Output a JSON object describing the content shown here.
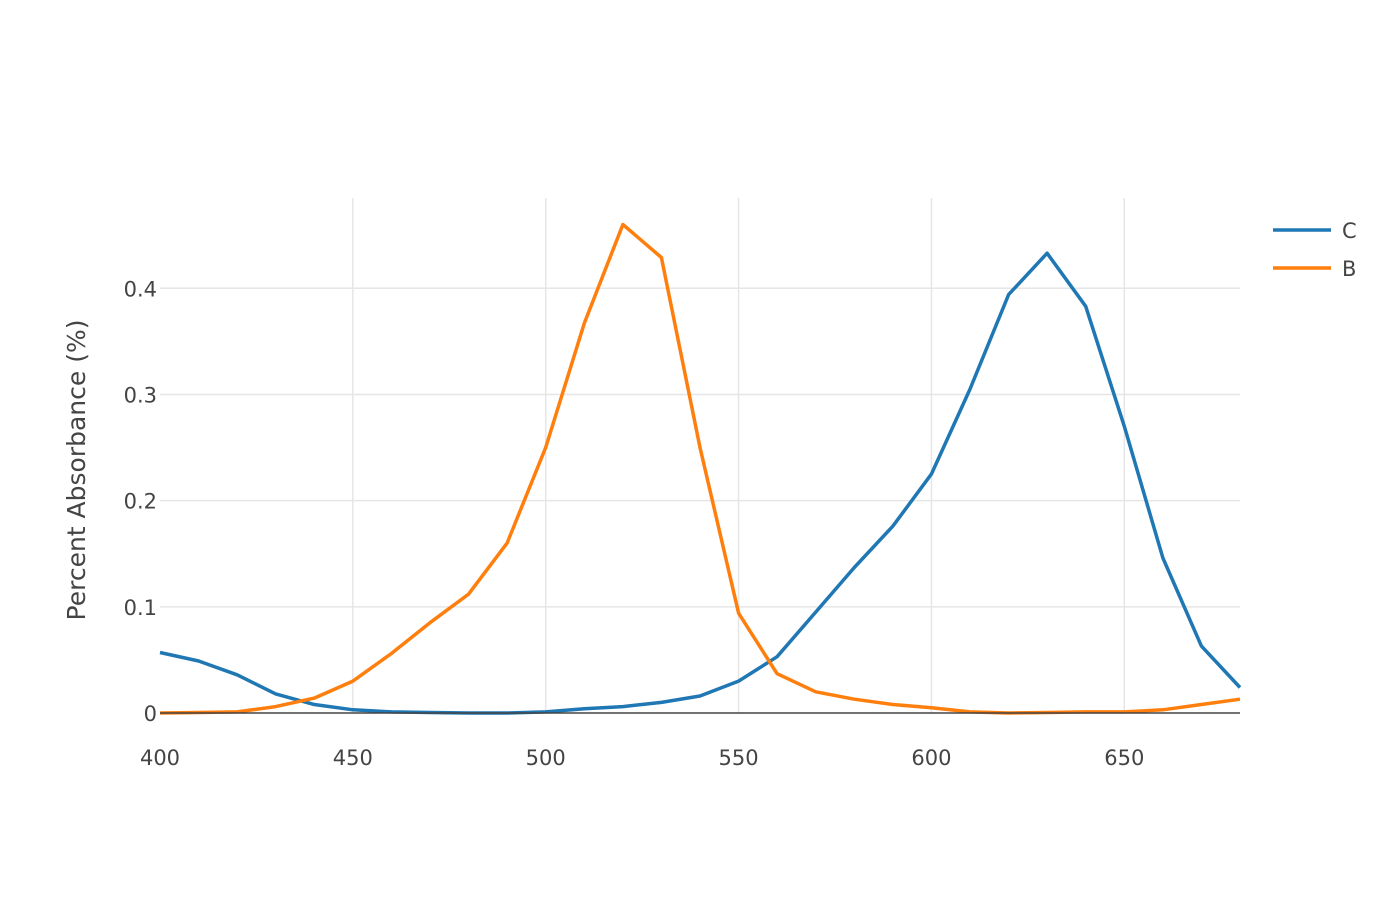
{
  "chart_data": {
    "type": "line",
    "title": "",
    "xlabel": "",
    "ylabel": "Percent Absorbance (%)",
    "xlim": [
      400,
      680
    ],
    "ylim": [
      0,
      0.485
    ],
    "x_ticks": [
      400,
      450,
      500,
      550,
      600,
      650
    ],
    "x_tick_labels": [
      "400",
      "450",
      "500",
      "550",
      "600",
      "650"
    ],
    "y_ticks": [
      0,
      0.1,
      0.2,
      0.3,
      0.4
    ],
    "y_tick_labels": [
      "0",
      "0.1",
      "0.2",
      "0.3",
      "0.4"
    ],
    "grid": true,
    "legend_position": "top-right",
    "x": [
      400,
      410,
      420,
      430,
      440,
      450,
      460,
      470,
      480,
      490,
      500,
      510,
      520,
      530,
      540,
      550,
      560,
      570,
      580,
      590,
      600,
      610,
      620,
      630,
      640,
      650,
      660,
      670,
      680
    ],
    "series": [
      {
        "name": "C",
        "color": "#1f77b4",
        "values": [
          0.057,
          0.049,
          0.036,
          0.018,
          0.008,
          0.003,
          0.001,
          0.0005,
          0.0,
          0.0,
          0.001,
          0.004,
          0.006,
          0.01,
          0.016,
          0.03,
          0.053,
          0.095,
          0.137,
          0.176,
          0.225,
          0.305,
          0.394,
          0.433,
          0.383,
          0.27,
          0.146,
          0.063,
          0.024
        ]
      },
      {
        "name": "B",
        "color": "#ff7f0e",
        "values": [
          0.0,
          0.0005,
          0.001,
          0.006,
          0.014,
          0.03,
          0.056,
          0.085,
          0.112,
          0.16,
          0.25,
          0.367,
          0.46,
          0.429,
          0.25,
          0.094,
          0.037,
          0.02,
          0.013,
          0.008,
          0.005,
          0.001,
          0.0,
          0.0005,
          0.001,
          0.001,
          0.003,
          0.008,
          0.013
        ]
      }
    ]
  }
}
